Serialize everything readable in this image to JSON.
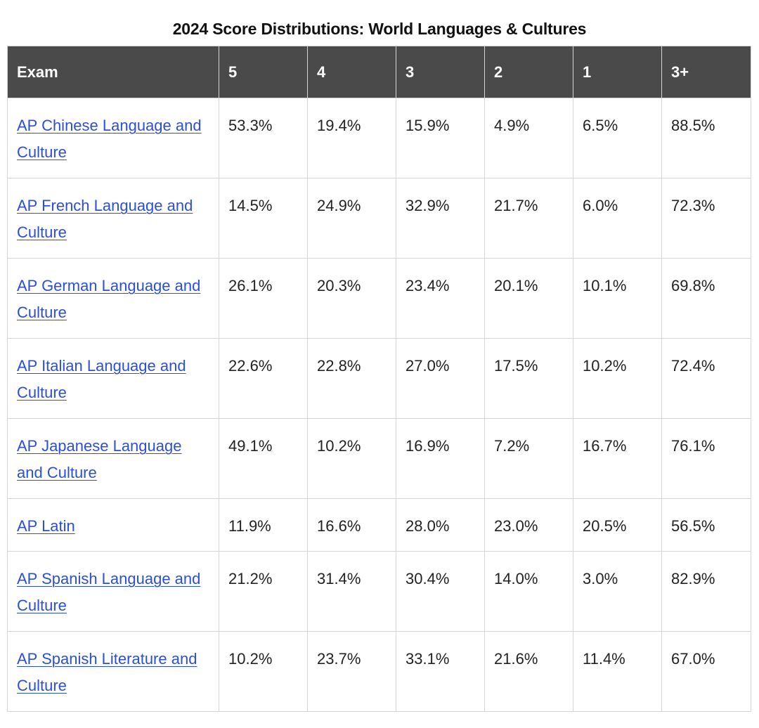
{
  "caption": "2024 Score Distributions: World Languages & Cultures",
  "table": {
    "headers": [
      "Exam",
      "5",
      "4",
      "3",
      "2",
      "1",
      "3+"
    ],
    "rows": [
      {
        "exam": "AP Chinese Language and Culture",
        "values": [
          "53.3%",
          "19.4%",
          "15.9%",
          "4.9%",
          "6.5%",
          "88.5%"
        ]
      },
      {
        "exam": "AP French Language and Culture",
        "values": [
          "14.5%",
          "24.9%",
          "32.9%",
          "21.7%",
          "6.0%",
          "72.3%"
        ]
      },
      {
        "exam": "AP German Language and Culture",
        "values": [
          "26.1%",
          "20.3%",
          "23.4%",
          "20.1%",
          "10.1%",
          "69.8%"
        ]
      },
      {
        "exam": "AP Italian Language and Culture",
        "values": [
          "22.6%",
          "22.8%",
          "27.0%",
          "17.5%",
          "10.2%",
          "72.4%"
        ]
      },
      {
        "exam": "AP Japanese Language and Culture",
        "values": [
          "49.1%",
          "10.2%",
          "16.9%",
          "7.2%",
          "16.7%",
          "76.1%"
        ]
      },
      {
        "exam": "AP Latin",
        "values": [
          "11.9%",
          "16.6%",
          "28.0%",
          "23.0%",
          "20.5%",
          "56.5%"
        ]
      },
      {
        "exam": "AP Spanish Language and Culture",
        "values": [
          "21.2%",
          "31.4%",
          "30.4%",
          "14.0%",
          "3.0%",
          "82.9%"
        ]
      },
      {
        "exam": "AP Spanish Literature and Culture",
        "values": [
          "10.2%",
          "23.7%",
          "33.1%",
          "21.6%",
          "11.4%",
          "67.0%"
        ]
      }
    ]
  },
  "colors": {
    "header_bg": "#4a4a4a",
    "header_text": "#ffffff",
    "link": "#2b4fd6",
    "border": "#d6d6d6"
  }
}
